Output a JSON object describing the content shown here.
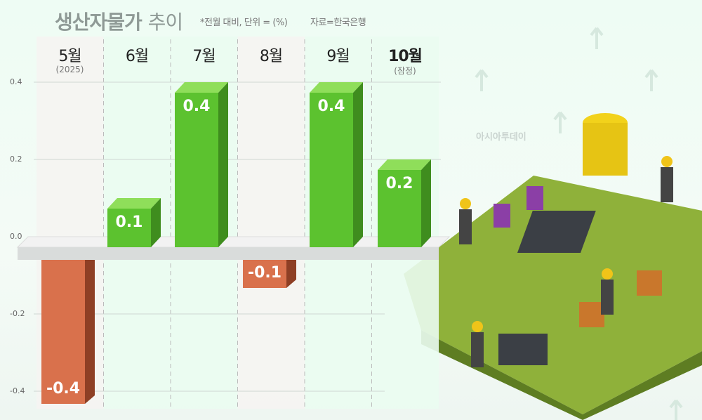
{
  "title": {
    "bold": "생산자물가",
    "light": "추이"
  },
  "note": "*전월 대비, 단위 = (%)",
  "source": "자료=한국은행",
  "watermark": "아시아투데이",
  "chart_data": {
    "type": "bar",
    "categories": [
      "5월",
      "6월",
      "7월",
      "8월",
      "9월",
      "10월"
    ],
    "category_sublabels": [
      "(2025)",
      "",
      "",
      "",
      "",
      "(잠정)"
    ],
    "values": [
      -0.4,
      0.1,
      0.4,
      -0.1,
      0.4,
      0.2
    ],
    "data_labels": [
      "-0.4",
      "0.1",
      "0.4",
      "-0.1",
      "0.4",
      "0.2"
    ],
    "yticks": [
      "0.4",
      "0.2",
      "0.0",
      "-0.2",
      "-0.4"
    ],
    "ylim": [
      -0.4,
      0.4
    ],
    "grid": true,
    "colors": {
      "positive": "#5cc22f",
      "negative": "#d9714c"
    }
  }
}
